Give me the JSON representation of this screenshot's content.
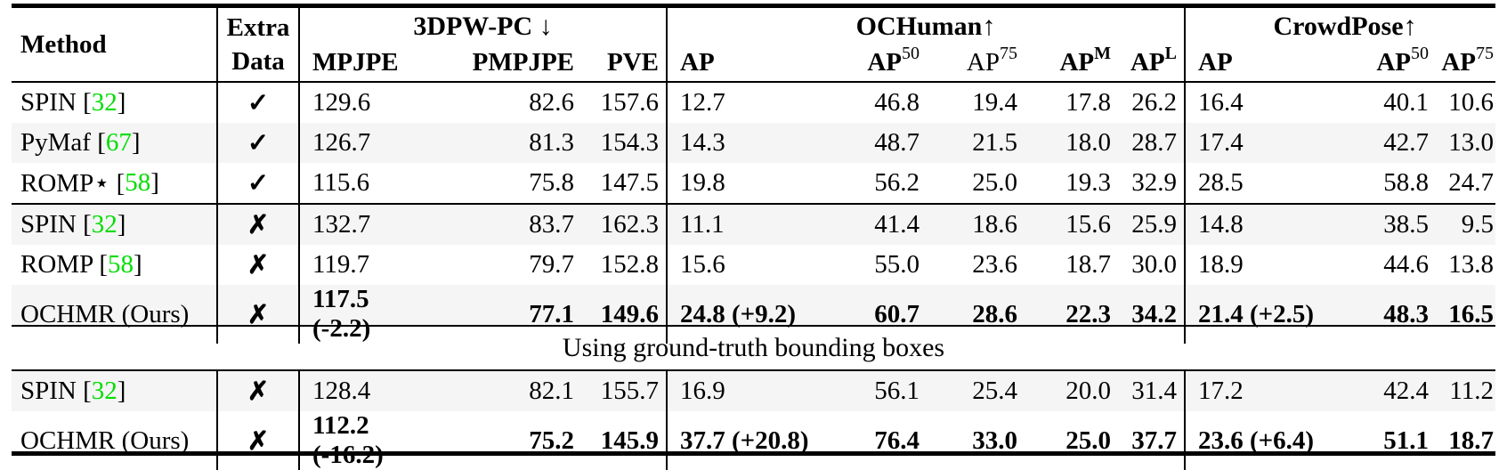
{
  "colors": {
    "citation_green": "#00DD00",
    "shade": "#F5F5F5"
  },
  "header": {
    "method": "Method",
    "extra_line1": "Extra",
    "extra_line2": "Data",
    "groups": [
      "3DPW-PC ↓",
      "OCHuman↑",
      "CrowdPose↑"
    ],
    "sub": [
      {
        "base": "MPJPE",
        "sup": ""
      },
      {
        "base": "PMPJPE",
        "sup": ""
      },
      {
        "base": "PVE",
        "sup": ""
      },
      {
        "base": "AP",
        "sup": ""
      },
      {
        "base": "AP",
        "sup": "50"
      },
      {
        "base": "AP",
        "sup": "75"
      },
      {
        "base": "AP",
        "sup": "M"
      },
      {
        "base": "AP",
        "sup": "L"
      },
      {
        "base": "AP",
        "sup": ""
      },
      {
        "base": "AP",
        "sup": "50"
      },
      {
        "base": "AP",
        "sup": "75"
      }
    ]
  },
  "section_label": "Using ground-truth bounding boxes",
  "rows": [
    {
      "pre": "SPIN [",
      "cite": "32",
      "post": "]",
      "extra": "✓",
      "vals": [
        "129.6",
        "82.6",
        "157.6",
        "12.7",
        "46.8",
        "19.4",
        "17.8",
        "26.2",
        "16.4",
        "40.1",
        "10.6"
      ]
    },
    {
      "pre": "PyMaf [",
      "cite": "67",
      "post": "]",
      "extra": "✓",
      "vals": [
        "126.7",
        "81.3",
        "154.3",
        "14.3",
        "48.7",
        "21.5",
        "18.0",
        "28.7",
        "17.4",
        "42.7",
        "13.0"
      ]
    },
    {
      "pre": "ROMP⋆ [",
      "cite": "58",
      "post": "]",
      "extra": "✓",
      "vals": [
        "115.6",
        "75.8",
        "147.5",
        "19.8",
        "56.2",
        "25.0",
        "19.3",
        "32.9",
        "28.5",
        "58.8",
        "24.7"
      ]
    },
    {
      "pre": "SPIN [",
      "cite": "32",
      "post": "]",
      "extra": "✗",
      "vals": [
        "132.7",
        "83.7",
        "162.3",
        "11.1",
        "41.4",
        "18.6",
        "15.6",
        "25.9",
        "14.8",
        "38.5",
        "9.5"
      ]
    },
    {
      "pre": "ROMP [",
      "cite": "58",
      "post": "]",
      "extra": "✗",
      "vals": [
        "119.7",
        "79.7",
        "152.8",
        "15.6",
        "55.0",
        "23.6",
        "18.7",
        "30.0",
        "18.9",
        "44.6",
        "13.8"
      ]
    },
    {
      "pre": "OCHMR (Ours)",
      "cite": "",
      "post": "",
      "extra": "✗",
      "vals": [
        "117.5 (-2.2)",
        "77.1",
        "149.6",
        "24.8 (+9.2)",
        "60.7",
        "28.6",
        "22.3",
        "34.2",
        "21.4 (+2.5)",
        "48.3",
        "16.5"
      ]
    }
  ],
  "rows_gt": [
    {
      "pre": "SPIN [",
      "cite": "32",
      "post": "]",
      "extra": "✗",
      "vals": [
        "128.4",
        "82.1",
        "155.7",
        "16.9",
        "56.1",
        "25.4",
        "20.0",
        "31.4",
        "17.2",
        "42.4",
        "11.2"
      ]
    },
    {
      "pre": "OCHMR (Ours)",
      "cite": "",
      "post": "",
      "extra": "✗",
      "vals": [
        "112.2 (-16.2)",
        "75.2",
        "145.9",
        "37.7 (+20.8)",
        "76.4",
        "33.0",
        "25.0",
        "37.7",
        "23.6 (+6.4)",
        "51.1",
        "18.7"
      ]
    }
  ]
}
